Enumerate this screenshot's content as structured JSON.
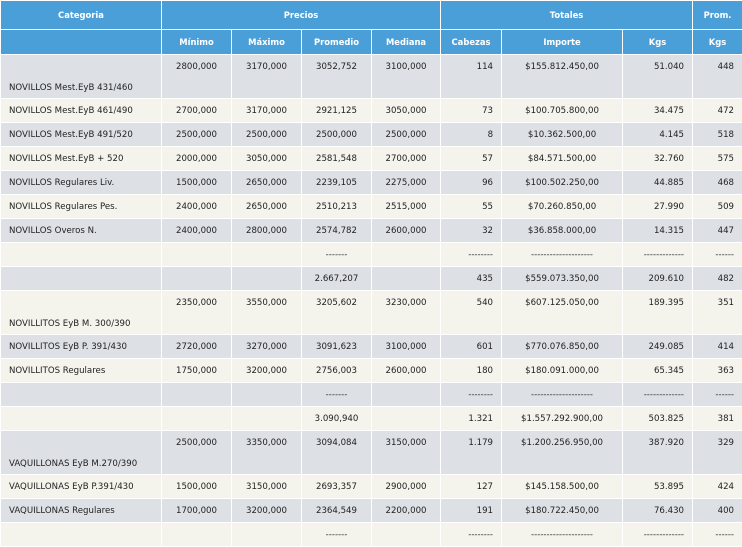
{
  "headers": {
    "categoria": "Categoria",
    "precios": "Precios",
    "totales": "Totales",
    "prom": "Prom.",
    "minimo": "Mínimo",
    "maximo": "Máximo",
    "promedio": "Promedio",
    "mediana": "Mediana",
    "cabezas": "Cabezas",
    "importe": "Importe",
    "kgs": "Kgs",
    "kgs2": "Kgs"
  },
  "rows": [
    {
      "cat": "NOVILLOS Mest.EyB 431/460",
      "min": "2800,000",
      "max": "3170,000",
      "prom": "3052,752",
      "med": "3100,000",
      "cab": "114",
      "imp": "$155.812.450,00",
      "kgs": "51.040",
      "pk": "448"
    },
    {
      "cat": "NOVILLOS Mest.EyB 461/490",
      "min": "2700,000",
      "max": "3170,000",
      "prom": "2921,125",
      "med": "3050,000",
      "cab": "73",
      "imp": "$100.705.800,00",
      "kgs": "34.475",
      "pk": "472"
    },
    {
      "cat": "NOVILLOS Mest.EyB 491/520",
      "min": "2500,000",
      "max": "2500,000",
      "prom": "2500,000",
      "med": "2500,000",
      "cab": "8",
      "imp": "$10.362.500,00",
      "kgs": "4.145",
      "pk": "518"
    },
    {
      "cat": "NOVILLOS Mest.EyB + 520",
      "min": "2000,000",
      "max": "3050,000",
      "prom": "2581,548",
      "med": "2700,000",
      "cab": "57",
      "imp": "$84.571.500,00",
      "kgs": "32.760",
      "pk": "575"
    },
    {
      "cat": "NOVILLOS Regulares Liv.",
      "min": "1500,000",
      "max": "2650,000",
      "prom": "2239,105",
      "med": "2275,000",
      "cab": "96",
      "imp": "$100.502.250,00",
      "kgs": "44.885",
      "pk": "468"
    },
    {
      "cat": "NOVILLOS Regulares Pes.",
      "min": "2400,000",
      "max": "2650,000",
      "prom": "2510,213",
      "med": "2515,000",
      "cab": "55",
      "imp": "$70.260.850,00",
      "kgs": "27.990",
      "pk": "509"
    },
    {
      "cat": "NOVILLOS Overos N.",
      "min": "2400,000",
      "max": "2800,000",
      "prom": "2574,782",
      "med": "2600,000",
      "cab": "32",
      "imp": "$36.858.000,00",
      "kgs": "14.315",
      "pk": "447"
    },
    {
      "prom": "-------",
      "cab": "--------",
      "imp": "--------------------",
      "kgs": "-------------",
      "pk": "------"
    },
    {
      "prom": "2.667,207",
      "cab": "435",
      "imp": "$559.073.350,00",
      "kgs": "209.610",
      "pk": "482"
    },
    {
      "cat": "NOVILLITOS EyB M. 300/390",
      "min": "2350,000",
      "max": "3550,000",
      "prom": "3205,602",
      "med": "3230,000",
      "cab": "540",
      "imp": "$607.125.050,00",
      "kgs": "189.395",
      "pk": "351"
    },
    {
      "cat": "NOVILLITOS EyB P. 391/430",
      "min": "2720,000",
      "max": "3270,000",
      "prom": "3091,623",
      "med": "3100,000",
      "cab": "601",
      "imp": "$770.076.850,00",
      "kgs": "249.085",
      "pk": "414"
    },
    {
      "cat": "NOVILLITOS Regulares",
      "min": "1750,000",
      "max": "3200,000",
      "prom": "2756,003",
      "med": "2600,000",
      "cab": "180",
      "imp": "$180.091.000,00",
      "kgs": "65.345",
      "pk": "363"
    },
    {
      "prom": "-------",
      "cab": "--------",
      "imp": "--------------------",
      "kgs": "-------------",
      "pk": "------"
    },
    {
      "prom": "3.090,940",
      "cab": "1.321",
      "imp": "$1.557.292.900,00",
      "kgs": "503.825",
      "pk": "381"
    },
    {
      "cat": "VAQUILLONAS EyB M.270/390",
      "min": "2500,000",
      "max": "3350,000",
      "prom": "3094,084",
      "med": "3150,000",
      "cab": "1.179",
      "imp": "$1.200.256.950,00",
      "kgs": "387.920",
      "pk": "329"
    },
    {
      "cat": "VAQUILLONAS EyB P.391/430",
      "min": "1500,000",
      "max": "3150,000",
      "prom": "2693,357",
      "med": "2900,000",
      "cab": "127",
      "imp": "$145.158.500,00",
      "kgs": "53.895",
      "pk": "424"
    },
    {
      "cat": "VAQUILLONAS Regulares",
      "min": "1700,000",
      "max": "3200,000",
      "prom": "2364,549",
      "med": "2200,000",
      "cab": "191",
      "imp": "$180.722.450,00",
      "kgs": "76.430",
      "pk": "400"
    },
    {
      "prom": "-------",
      "cab": "--------",
      "imp": "--------------------",
      "kgs": "-------------",
      "pk": "------"
    }
  ]
}
